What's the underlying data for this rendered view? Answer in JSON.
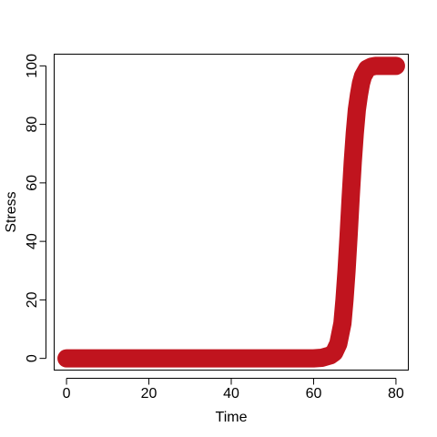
{
  "chart_data": {
    "type": "line",
    "title": "",
    "xlabel": "Time",
    "ylabel": "Stress",
    "xlim": [
      -3,
      83
    ],
    "ylim": [
      -4,
      104
    ],
    "x_ticks": [
      0,
      20,
      40,
      60,
      80
    ],
    "y_ticks": [
      0,
      20,
      40,
      60,
      80,
      100
    ],
    "series": [
      {
        "color": "#C0141E",
        "x": [
          0,
          10,
          20,
          30,
          40,
          50,
          60,
          62,
          64,
          65,
          66,
          67,
          67.5,
          68,
          68.5,
          69,
          69.5,
          70,
          70.5,
          71,
          71.5,
          72,
          73,
          74,
          75,
          76,
          78,
          80
        ],
        "y": [
          0,
          0,
          0,
          0,
          0,
          0,
          0,
          0.2,
          1,
          2,
          5,
          12,
          20,
          30,
          42,
          55,
          67,
          77,
          85,
          90,
          94,
          96.5,
          99,
          99.7,
          100,
          100,
          100,
          100
        ]
      }
    ]
  }
}
